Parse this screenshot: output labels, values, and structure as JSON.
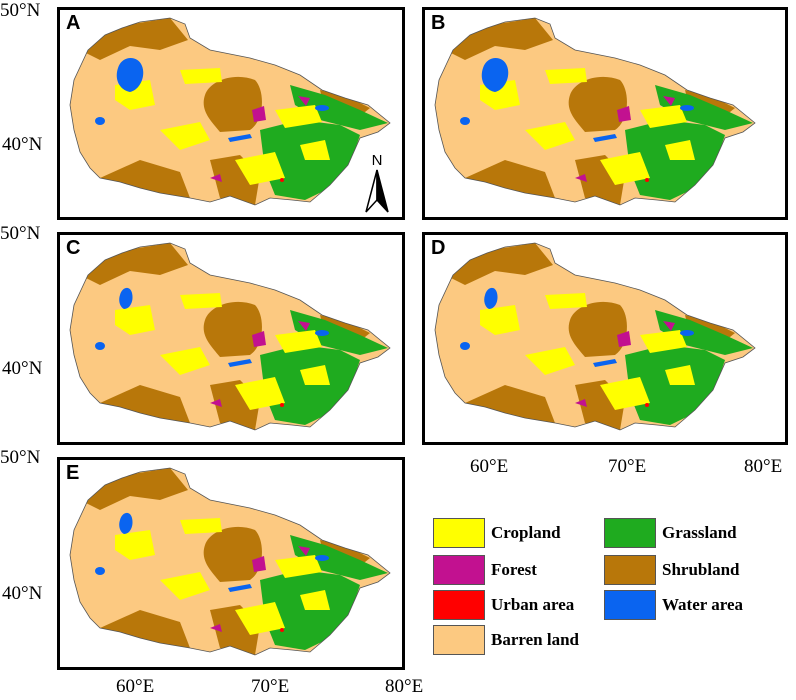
{
  "panels": [
    {
      "label": "A"
    },
    {
      "label": "B"
    },
    {
      "label": "C"
    },
    {
      "label": "D"
    },
    {
      "label": "E"
    }
  ],
  "lat_labels": {
    "n50": "50°N",
    "n40": "40°N"
  },
  "lon_labels": {
    "e60": "60°E",
    "e70": "70°E",
    "e80": "80°E"
  },
  "north_arrow": {
    "label": "N"
  },
  "legend": [
    {
      "label": "Cropland",
      "color": "#ffff00"
    },
    {
      "label": "Grassland",
      "color": "#1fab1f"
    },
    {
      "label": "Forest",
      "color": "#c21190"
    },
    {
      "label": "Shrubland",
      "color": "#b8770a"
    },
    {
      "label": "Urban area",
      "color": "#ff0000"
    },
    {
      "label": "Water area",
      "color": "#0a64f0"
    },
    {
      "label": "Barren land",
      "color": "#fcc981"
    }
  ]
}
